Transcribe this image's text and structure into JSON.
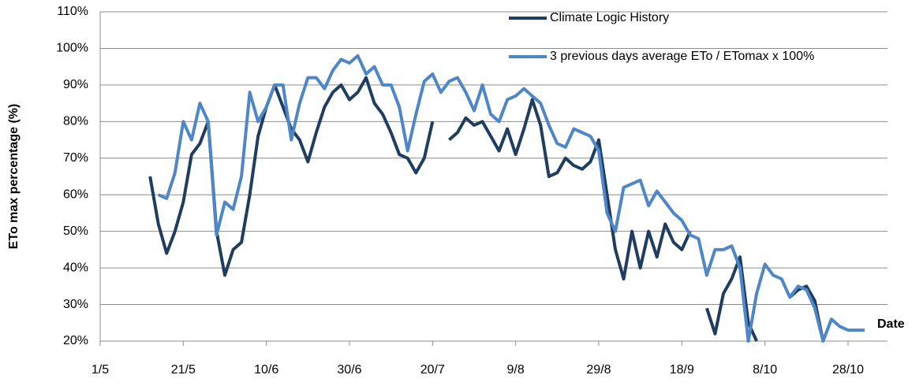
{
  "chart_data": {
    "type": "line",
    "y_label": "ETo max percentage (%)",
    "x_label": "Date",
    "x": [
      10,
      12,
      14,
      16,
      18,
      20,
      22,
      24,
      26,
      28,
      30,
      32,
      34,
      36,
      38,
      40,
      42,
      44,
      46,
      48,
      50,
      52,
      54,
      56,
      58,
      60,
      62,
      64,
      66,
      68,
      70,
      72,
      74,
      76,
      78,
      80,
      82,
      84,
      86,
      88,
      90,
      92,
      94,
      96,
      98,
      100,
      102,
      104,
      106,
      108,
      110,
      112,
      114,
      116,
      118,
      120,
      122,
      124,
      126,
      128,
      130,
      132,
      134,
      136,
      138,
      140,
      142,
      144,
      146,
      148,
      150,
      152,
      154,
      156,
      158,
      160,
      162,
      164,
      166,
      168,
      170,
      172,
      174,
      176,
      178,
      180,
      182,
      184
    ],
    "series": [
      {
        "name": "Climate Logic History",
        "color": "#1f3d5f",
        "values": [
          null,
          65,
          52,
          44,
          50,
          58,
          71,
          74,
          80,
          50,
          38,
          45,
          47,
          60,
          76,
          84,
          90,
          84,
          78,
          75,
          69,
          77,
          84,
          88,
          90,
          86,
          88,
          92,
          85,
          82,
          77,
          71,
          70,
          66,
          70,
          80,
          null,
          75,
          77,
          81,
          79,
          80,
          76,
          72,
          78,
          71,
          78,
          86,
          79,
          65,
          66,
          70,
          68,
          67,
          69,
          75,
          60,
          45,
          37,
          50,
          40,
          50,
          43,
          52,
          47,
          45,
          50,
          null,
          29,
          22,
          33,
          37,
          43,
          25,
          20,
          null,
          null,
          null,
          32,
          34,
          35,
          31,
          20,
          null,
          null,
          null,
          null,
          null
        ]
      },
      {
        "name": "3 previous days average ETo / ETomax  x 100%",
        "color": "#4f86c6",
        "values": [
          null,
          null,
          60,
          59,
          66,
          80,
          75,
          85,
          80,
          49,
          58,
          56,
          65,
          88,
          80,
          84,
          90,
          90,
          75,
          85,
          92,
          92,
          89,
          94,
          97,
          96,
          98,
          93,
          95,
          90,
          90,
          84,
          72,
          82,
          91,
          93,
          88,
          91,
          92,
          88,
          83,
          90,
          82,
          80,
          86,
          87,
          89,
          87,
          85,
          79,
          74,
          73,
          78,
          77,
          76,
          72,
          55,
          50,
          62,
          63,
          64,
          57,
          61,
          58,
          55,
          53,
          49,
          48,
          38,
          45,
          45,
          46,
          40,
          20,
          33,
          41,
          38,
          37,
          32,
          35,
          34,
          29,
          20,
          26,
          24,
          23,
          23,
          23
        ]
      }
    ],
    "xlim": [
      0,
      189.5
    ],
    "xticks": [
      {
        "value": 0,
        "label": "1/5"
      },
      {
        "value": 20,
        "label": "21/5"
      },
      {
        "value": 40,
        "label": "10/6"
      },
      {
        "value": 60,
        "label": "30/6"
      },
      {
        "value": 80,
        "label": "20/7"
      },
      {
        "value": 100,
        "label": "9/8"
      },
      {
        "value": 120,
        "label": "29/8"
      },
      {
        "value": 140,
        "label": "18/9"
      },
      {
        "value": 160,
        "label": "8/10"
      },
      {
        "value": 180,
        "label": "28/10"
      }
    ],
    "ylim": [
      20,
      110
    ],
    "yticks": [
      {
        "value": 20,
        "label": "20%"
      },
      {
        "value": 30,
        "label": "30%"
      },
      {
        "value": 40,
        "label": "40%"
      },
      {
        "value": 50,
        "label": "50%"
      },
      {
        "value": 60,
        "label": "60%"
      },
      {
        "value": 70,
        "label": "70%"
      },
      {
        "value": 80,
        "label": "80%"
      },
      {
        "value": 90,
        "label": "90%"
      },
      {
        "value": 100,
        "label": "100%"
      },
      {
        "value": 110,
        "label": "110%"
      }
    ],
    "grid": true
  }
}
